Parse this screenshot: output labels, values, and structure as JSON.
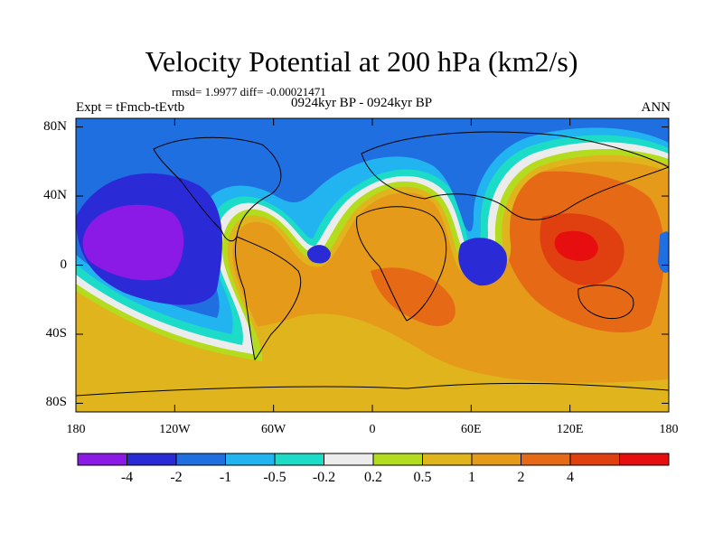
{
  "title": "Velocity Potential at 200 hPa (km2/s)",
  "stats": "rmsd= 1.9977 diff= -0.00021471",
  "experiment": "Expt = tFmcb-tEvtb",
  "period": "0924kyr BP - 0924kyr BP",
  "season": "ANN",
  "map": {
    "lat_ticks": [
      {
        "lat": 80,
        "label": "80N"
      },
      {
        "lat": 40,
        "label": "40N"
      },
      {
        "lat": 0,
        "label": "0"
      },
      {
        "lat": -40,
        "label": "40S"
      },
      {
        "lat": -80,
        "label": "80S"
      }
    ],
    "lon_ticks": [
      {
        "lon": -180,
        "label": "180"
      },
      {
        "lon": -120,
        "label": "120W"
      },
      {
        "lon": -60,
        "label": "60W"
      },
      {
        "lon": 0,
        "label": "0"
      },
      {
        "lon": 60,
        "label": "60E"
      },
      {
        "lon": 120,
        "label": "120E"
      },
      {
        "lon": 180,
        "label": "180"
      }
    ]
  },
  "colorbar": {
    "colors": [
      "#8c1ae6",
      "#2a2ad6",
      "#1f6fe0",
      "#22b4f0",
      "#1cdcc8",
      "#ececec",
      "#b4dc1e",
      "#e0b41c",
      "#e69a1a",
      "#e66a16",
      "#e04010",
      "#e60e0e"
    ],
    "labels": [
      "-4",
      "-2",
      "-1",
      "-0.5",
      "-0.2",
      "0.2",
      "0.5",
      "1",
      "2",
      "4"
    ]
  }
}
